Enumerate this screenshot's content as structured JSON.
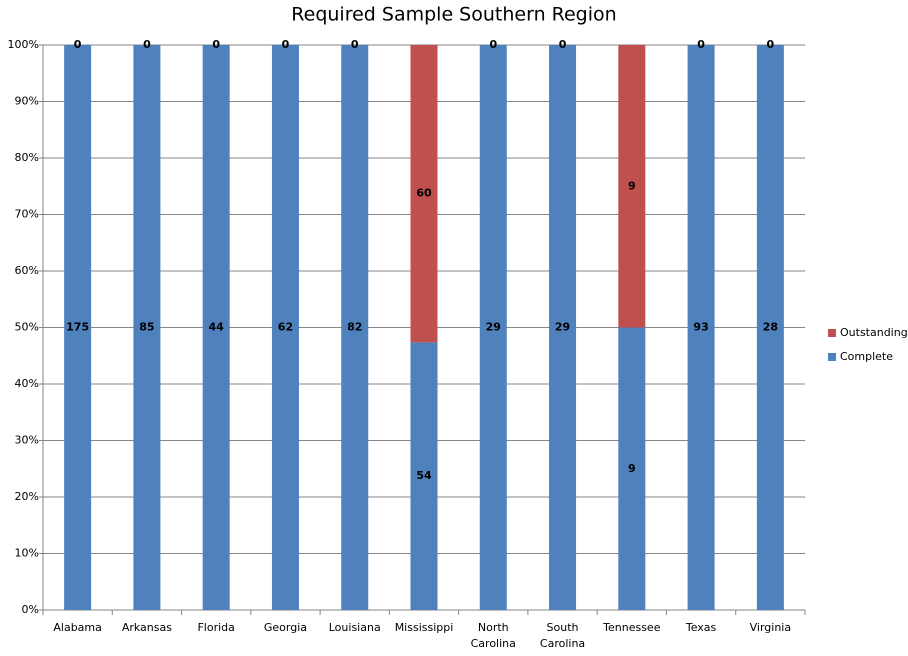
{
  "chart_data": {
    "type": "bar",
    "stacking": "percent",
    "title": "Required Sample Southern Region",
    "categories": [
      "Alabama",
      "Arkansas",
      "Florida",
      "Georgia",
      "Louisiana",
      "Mississippi",
      "North Carolina",
      "South Carolina",
      "Tennessee",
      "Texas",
      "Virginia"
    ],
    "series": [
      {
        "name": "Complete",
        "color": "#4f81bd",
        "values": [
          175,
          85,
          44,
          62,
          82,
          54,
          29,
          29,
          9,
          93,
          28
        ]
      },
      {
        "name": "Outstanding",
        "color": "#c0504d",
        "values": [
          0,
          0,
          0,
          0,
          0,
          60,
          0,
          0,
          9,
          0,
          0
        ]
      }
    ],
    "ylim": [
      0,
      100
    ],
    "yticks": [
      {
        "value": 0,
        "label": "0%"
      },
      {
        "value": 10,
        "label": "10%"
      },
      {
        "value": 20,
        "label": "20%"
      },
      {
        "value": 30,
        "label": "30%"
      },
      {
        "value": 40,
        "label": "40%"
      },
      {
        "value": 50,
        "label": "50%"
      },
      {
        "value": 60,
        "label": "60%"
      },
      {
        "value": 70,
        "label": "70%"
      },
      {
        "value": 80,
        "label": "80%"
      },
      {
        "value": 90,
        "label": "90%"
      },
      {
        "value": 100,
        "label": "100%"
      }
    ],
    "grid": true,
    "legend": "right"
  }
}
